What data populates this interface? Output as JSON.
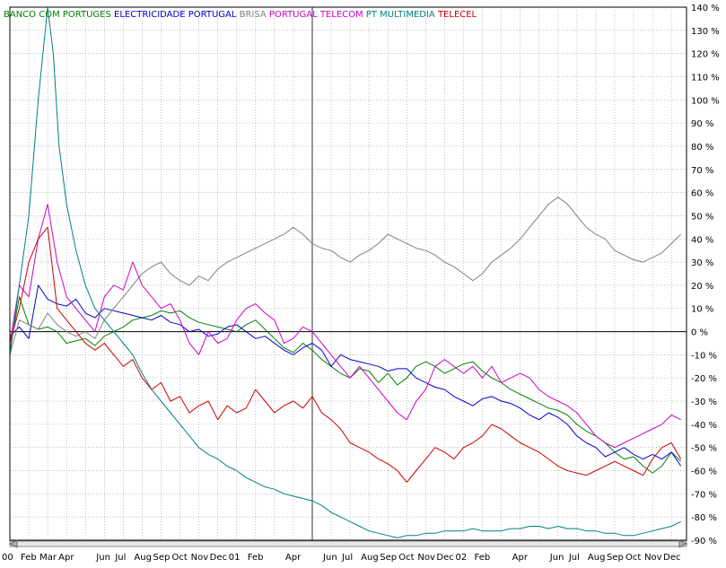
{
  "chart_data": {
    "type": "line",
    "title": "",
    "xlabel": "",
    "ylabel": "",
    "ylim": [
      -90,
      140
    ],
    "y_ticks": [
      140,
      130,
      120,
      110,
      100,
      90,
      80,
      70,
      60,
      50,
      40,
      30,
      20,
      10,
      0,
      -10,
      -20,
      -30,
      -40,
      -50,
      -60,
      -70,
      -80,
      -90
    ],
    "y_tick_labels": [
      "140 %",
      "130 %",
      "120 %",
      "110 %",
      "100 %",
      "90 %",
      "80 %",
      "70 %",
      "60 %",
      "50 %",
      "40 %",
      "30 %",
      "20 %",
      "10 %",
      "0 %",
      "-10 %",
      "-20 %",
      "-30 %",
      "-40 %",
      "-50 %",
      "-60 %",
      "-70 %",
      "-80 %",
      "-90 %"
    ],
    "xlim": [
      0,
      35.8
    ],
    "x_ticks": [
      {
        "m": 0,
        "label": "00"
      },
      {
        "m": 1,
        "label": "Feb"
      },
      {
        "m": 2,
        "label": "Mar"
      },
      {
        "m": 3,
        "label": "Apr"
      },
      {
        "m": 5,
        "label": "Jun"
      },
      {
        "m": 6,
        "label": "Jul"
      },
      {
        "m": 7,
        "label": "Aug"
      },
      {
        "m": 8,
        "label": "Sep"
      },
      {
        "m": 9,
        "label": "Oct"
      },
      {
        "m": 10,
        "label": "Nov"
      },
      {
        "m": 11,
        "label": "Dec"
      },
      {
        "m": 12,
        "label": "01"
      },
      {
        "m": 13,
        "label": "Feb"
      },
      {
        "m": 15,
        "label": "Apr"
      },
      {
        "m": 17,
        "label": "Jun"
      },
      {
        "m": 18,
        "label": "Jul"
      },
      {
        "m": 19,
        "label": "Aug"
      },
      {
        "m": 20,
        "label": "Sep"
      },
      {
        "m": 21,
        "label": "Oct"
      },
      {
        "m": 22,
        "label": "Nov"
      },
      {
        "m": 23,
        "label": "Dec"
      },
      {
        "m": 24,
        "label": "02"
      },
      {
        "m": 25,
        "label": "Feb"
      },
      {
        "m": 27,
        "label": "Apr"
      },
      {
        "m": 29,
        "label": "Jun"
      },
      {
        "m": 30,
        "label": "Jul"
      },
      {
        "m": 31,
        "label": "Aug"
      },
      {
        "m": 32,
        "label": "Sep"
      },
      {
        "m": 33,
        "label": "Oct"
      },
      {
        "m": 34,
        "label": "Nov"
      },
      {
        "m": 35,
        "label": "Dec"
      }
    ],
    "grid": true,
    "legend": "top-left",
    "marker_line_m": 16,
    "series": [
      {
        "name": "BANCO COM PORTUGES",
        "color": "#008000",
        "x": [
          0,
          0.5,
          1,
          1.5,
          2,
          2.5,
          3,
          3.5,
          4,
          4.5,
          5,
          5.5,
          6,
          6.5,
          7,
          7.5,
          8,
          8.5,
          9,
          9.5,
          10,
          10.5,
          11,
          11.5,
          12,
          12.5,
          13,
          13.5,
          14,
          14.5,
          15,
          15.5,
          16,
          16.5,
          17,
          17.5,
          18,
          18.5,
          19,
          19.5,
          20,
          20.5,
          21,
          21.5,
          22,
          22.5,
          23,
          23.5,
          24,
          24.5,
          25,
          25.5,
          26,
          26.5,
          27,
          27.5,
          28,
          28.5,
          29,
          29.5,
          30,
          30.5,
          31,
          31.5,
          32,
          32.5,
          33,
          33.5,
          34,
          34.5,
          35,
          35.5
        ],
        "y": [
          -8,
          15,
          3,
          1,
          2,
          0,
          -5,
          -4,
          -3,
          -6,
          -2,
          0,
          2,
          5,
          6,
          7,
          9,
          8,
          9,
          6,
          4,
          3,
          2,
          1,
          0,
          3,
          5,
          1,
          -3,
          -7,
          -9,
          -5,
          -8,
          -12,
          -15,
          -18,
          -20,
          -16,
          -17,
          -22,
          -18,
          -23,
          -20,
          -15,
          -13,
          -15,
          -18,
          -16,
          -14,
          -13,
          -17,
          -20,
          -22,
          -25,
          -27,
          -29,
          -31,
          -33,
          -34,
          -36,
          -40,
          -43,
          -45,
          -48,
          -52,
          -55,
          -54,
          -58,
          -61,
          -58,
          -52,
          -56
        ]
      },
      {
        "name": "ELECTRICIDADE PORTUGAL",
        "color": "#0000cc",
        "x": [
          0,
          0.5,
          1,
          1.5,
          2,
          2.5,
          3,
          3.5,
          4,
          4.5,
          5,
          5.5,
          6,
          6.5,
          7,
          7.5,
          8,
          8.5,
          9,
          9.5,
          10,
          10.5,
          11,
          11.5,
          12,
          12.5,
          13,
          13.5,
          14,
          14.5,
          15,
          15.5,
          16,
          16.5,
          17,
          17.5,
          18,
          18.5,
          19,
          19.5,
          20,
          20.5,
          21,
          21.5,
          22,
          22.5,
          23,
          23.5,
          24,
          24.5,
          25,
          25.5,
          26,
          26.5,
          27,
          27.5,
          28,
          28.5,
          29,
          29.5,
          30,
          30.5,
          31,
          31.5,
          32,
          32.5,
          33,
          33.5,
          34,
          34.5,
          35,
          35.5
        ],
        "y": [
          -2,
          2,
          -3,
          20,
          14,
          12,
          11,
          14,
          8,
          6,
          10,
          9,
          8,
          7,
          6,
          5,
          7,
          4,
          3,
          0,
          1,
          -2,
          -1,
          2,
          3,
          0,
          -3,
          -2,
          -5,
          -8,
          -10,
          -7,
          -5,
          -8,
          -15,
          -10,
          -12,
          -13,
          -14,
          -15,
          -17,
          -16,
          -16,
          -20,
          -22,
          -24,
          -25,
          -28,
          -30,
          -32,
          -29,
          -28,
          -30,
          -31,
          -33,
          -36,
          -38,
          -35,
          -37,
          -40,
          -45,
          -48,
          -50,
          -54,
          -52,
          -50,
          -53,
          -55,
          -53,
          -55,
          -52,
          -58
        ]
      },
      {
        "name": "BRISA",
        "color": "#808080",
        "x": [
          0,
          0.5,
          1,
          1.5,
          2,
          2.5,
          3,
          3.5,
          4,
          4.5,
          5,
          5.5,
          6,
          6.5,
          7,
          7.5,
          8,
          8.5,
          9,
          9.5,
          10,
          10.5,
          11,
          11.5,
          12,
          12.5,
          13,
          13.5,
          14,
          14.5,
          15,
          15.5,
          16,
          16.5,
          17,
          17.5,
          18,
          18.5,
          19,
          19.5,
          20,
          20.5,
          21,
          21.5,
          22,
          22.5,
          23,
          23.5,
          24,
          24.5,
          25,
          25.5,
          26,
          26.5,
          27,
          27.5,
          28,
          28.5,
          29,
          29.5,
          30,
          30.5,
          31,
          31.5,
          32,
          32.5,
          33,
          33.5,
          34,
          34.5,
          35,
          35.5
        ],
        "y": [
          -10,
          5,
          3,
          1,
          8,
          3,
          0,
          -2,
          0,
          -3,
          5,
          10,
          15,
          20,
          25,
          28,
          30,
          25,
          22,
          20,
          24,
          22,
          27,
          30,
          32,
          34,
          36,
          38,
          40,
          42,
          45,
          42,
          38,
          36,
          35,
          32,
          30,
          33,
          35,
          38,
          42,
          40,
          38,
          36,
          35,
          33,
          30,
          28,
          25,
          22,
          25,
          30,
          33,
          36,
          40,
          45,
          50,
          55,
          58,
          55,
          50,
          45,
          42,
          40,
          35,
          33,
          31,
          30,
          32,
          34,
          38,
          42
        ]
      },
      {
        "name": "PORTUGAL TELECOM",
        "color": "#cc00cc",
        "x": [
          0,
          0.5,
          1,
          1.5,
          2,
          2.5,
          3,
          3.5,
          4,
          4.5,
          5,
          5.5,
          6,
          6.5,
          7,
          7.5,
          8,
          8.5,
          9,
          9.5,
          10,
          10.5,
          11,
          11.5,
          12,
          12.5,
          13,
          13.5,
          14,
          14.5,
          15,
          15.5,
          16,
          16.5,
          17,
          17.5,
          18,
          18.5,
          19,
          19.5,
          20,
          20.5,
          21,
          21.5,
          22,
          22.5,
          23,
          23.5,
          24,
          24.5,
          25,
          25.5,
          26,
          26.5,
          27,
          27.5,
          28,
          28.5,
          29,
          29.5,
          30,
          30.5,
          31,
          31.5,
          32,
          32.5,
          33,
          33.5,
          34,
          34.5,
          35,
          35.5
        ],
        "y": [
          -5,
          20,
          15,
          40,
          55,
          30,
          15,
          10,
          5,
          0,
          15,
          20,
          18,
          30,
          20,
          15,
          10,
          12,
          5,
          -5,
          -10,
          0,
          -5,
          -3,
          5,
          10,
          12,
          8,
          5,
          -5,
          -3,
          2,
          0,
          -5,
          -10,
          -15,
          -20,
          -15,
          -20,
          -25,
          -30,
          -35,
          -38,
          -30,
          -25,
          -15,
          -12,
          -15,
          -18,
          -15,
          -20,
          -15,
          -22,
          -20,
          -18,
          -20,
          -25,
          -28,
          -30,
          -32,
          -35,
          -40,
          -45,
          -48,
          -50,
          -48,
          -46,
          -44,
          -42,
          -40,
          -36,
          -38
        ]
      },
      {
        "name": "PT MULTIMEDIA",
        "color": "#008080",
        "x": [
          0,
          0.5,
          1,
          1.5,
          2,
          2.3,
          2.6,
          3,
          3.5,
          4,
          4.5,
          5,
          5.5,
          6,
          6.5,
          7,
          7.5,
          8,
          8.5,
          9,
          9.5,
          10,
          10.5,
          11,
          11.5,
          12,
          12.5,
          13,
          13.5,
          14,
          14.5,
          15,
          15.5,
          16,
          16.5,
          17,
          17.5,
          18,
          18.5,
          19,
          19.5,
          20,
          20.5,
          21,
          21.5,
          22,
          22.5,
          23,
          23.5,
          24,
          24.5,
          25,
          25.5,
          26,
          26.5,
          27,
          27.5,
          28,
          28.5,
          29,
          29.5,
          30,
          30.5,
          31,
          31.5,
          32,
          32.5,
          33,
          33.5,
          34,
          34.5,
          35,
          35.5
        ],
        "y": [
          -10,
          20,
          50,
          100,
          140,
          120,
          80,
          55,
          35,
          20,
          10,
          5,
          0,
          -5,
          -10,
          -18,
          -25,
          -30,
          -35,
          -40,
          -45,
          -50,
          -53,
          -55,
          -58,
          -60,
          -63,
          -65,
          -67,
          -68,
          -70,
          -71,
          -72,
          -73,
          -75,
          -78,
          -80,
          -82,
          -84,
          -86,
          -87,
          -88,
          -89,
          -88,
          -88,
          -87,
          -87,
          -86,
          -86,
          -86,
          -85,
          -86,
          -86,
          -86,
          -85,
          -85,
          -84,
          -84,
          -85,
          -84,
          -85,
          -85,
          -86,
          -86,
          -87,
          -87,
          -88,
          -88,
          -87,
          -86,
          -85,
          -84,
          -82
        ]
      },
      {
        "name": "TELECEL",
        "color": "#cc0000",
        "x": [
          0,
          0.5,
          1,
          1.5,
          2,
          2.5,
          3,
          3.5,
          4,
          4.5,
          5,
          5.5,
          6,
          6.5,
          7,
          7.5,
          8,
          8.5,
          9,
          9.5,
          10,
          10.5,
          11,
          11.5,
          12,
          12.5,
          13,
          13.5,
          14,
          14.5,
          15,
          15.5,
          16,
          16.5,
          17,
          17.5,
          18,
          18.5,
          19,
          19.5,
          20,
          20.5,
          21,
          21.5,
          22,
          22.5,
          23,
          23.5,
          24,
          24.5,
          25,
          25.5,
          26,
          26.5,
          27,
          27.5,
          28,
          28.5,
          29,
          29.5,
          30,
          30.5,
          31,
          31.5,
          32,
          32.5,
          33,
          33.5,
          34,
          34.5,
          35,
          35.5
        ],
        "y": [
          -5,
          10,
          30,
          40,
          45,
          10,
          5,
          0,
          -5,
          -8,
          -5,
          -10,
          -15,
          -12,
          -20,
          -25,
          -22,
          -30,
          -28,
          -35,
          -32,
          -30,
          -38,
          -32,
          -35,
          -33,
          -25,
          -30,
          -35,
          -32,
          -30,
          -33,
          -28,
          -35,
          -38,
          -42,
          -48,
          -50,
          -52,
          -55,
          -57,
          -60,
          -65,
          -60,
          -55,
          -50,
          -52,
          -55,
          -50,
          -48,
          -45,
          -40,
          -42,
          -45,
          -48,
          -50,
          -52,
          -55,
          -58,
          -60,
          -61,
          -62,
          -60,
          -58,
          -56,
          -58,
          -60,
          -62,
          -55,
          -50,
          -48,
          -55
        ]
      }
    ]
  }
}
